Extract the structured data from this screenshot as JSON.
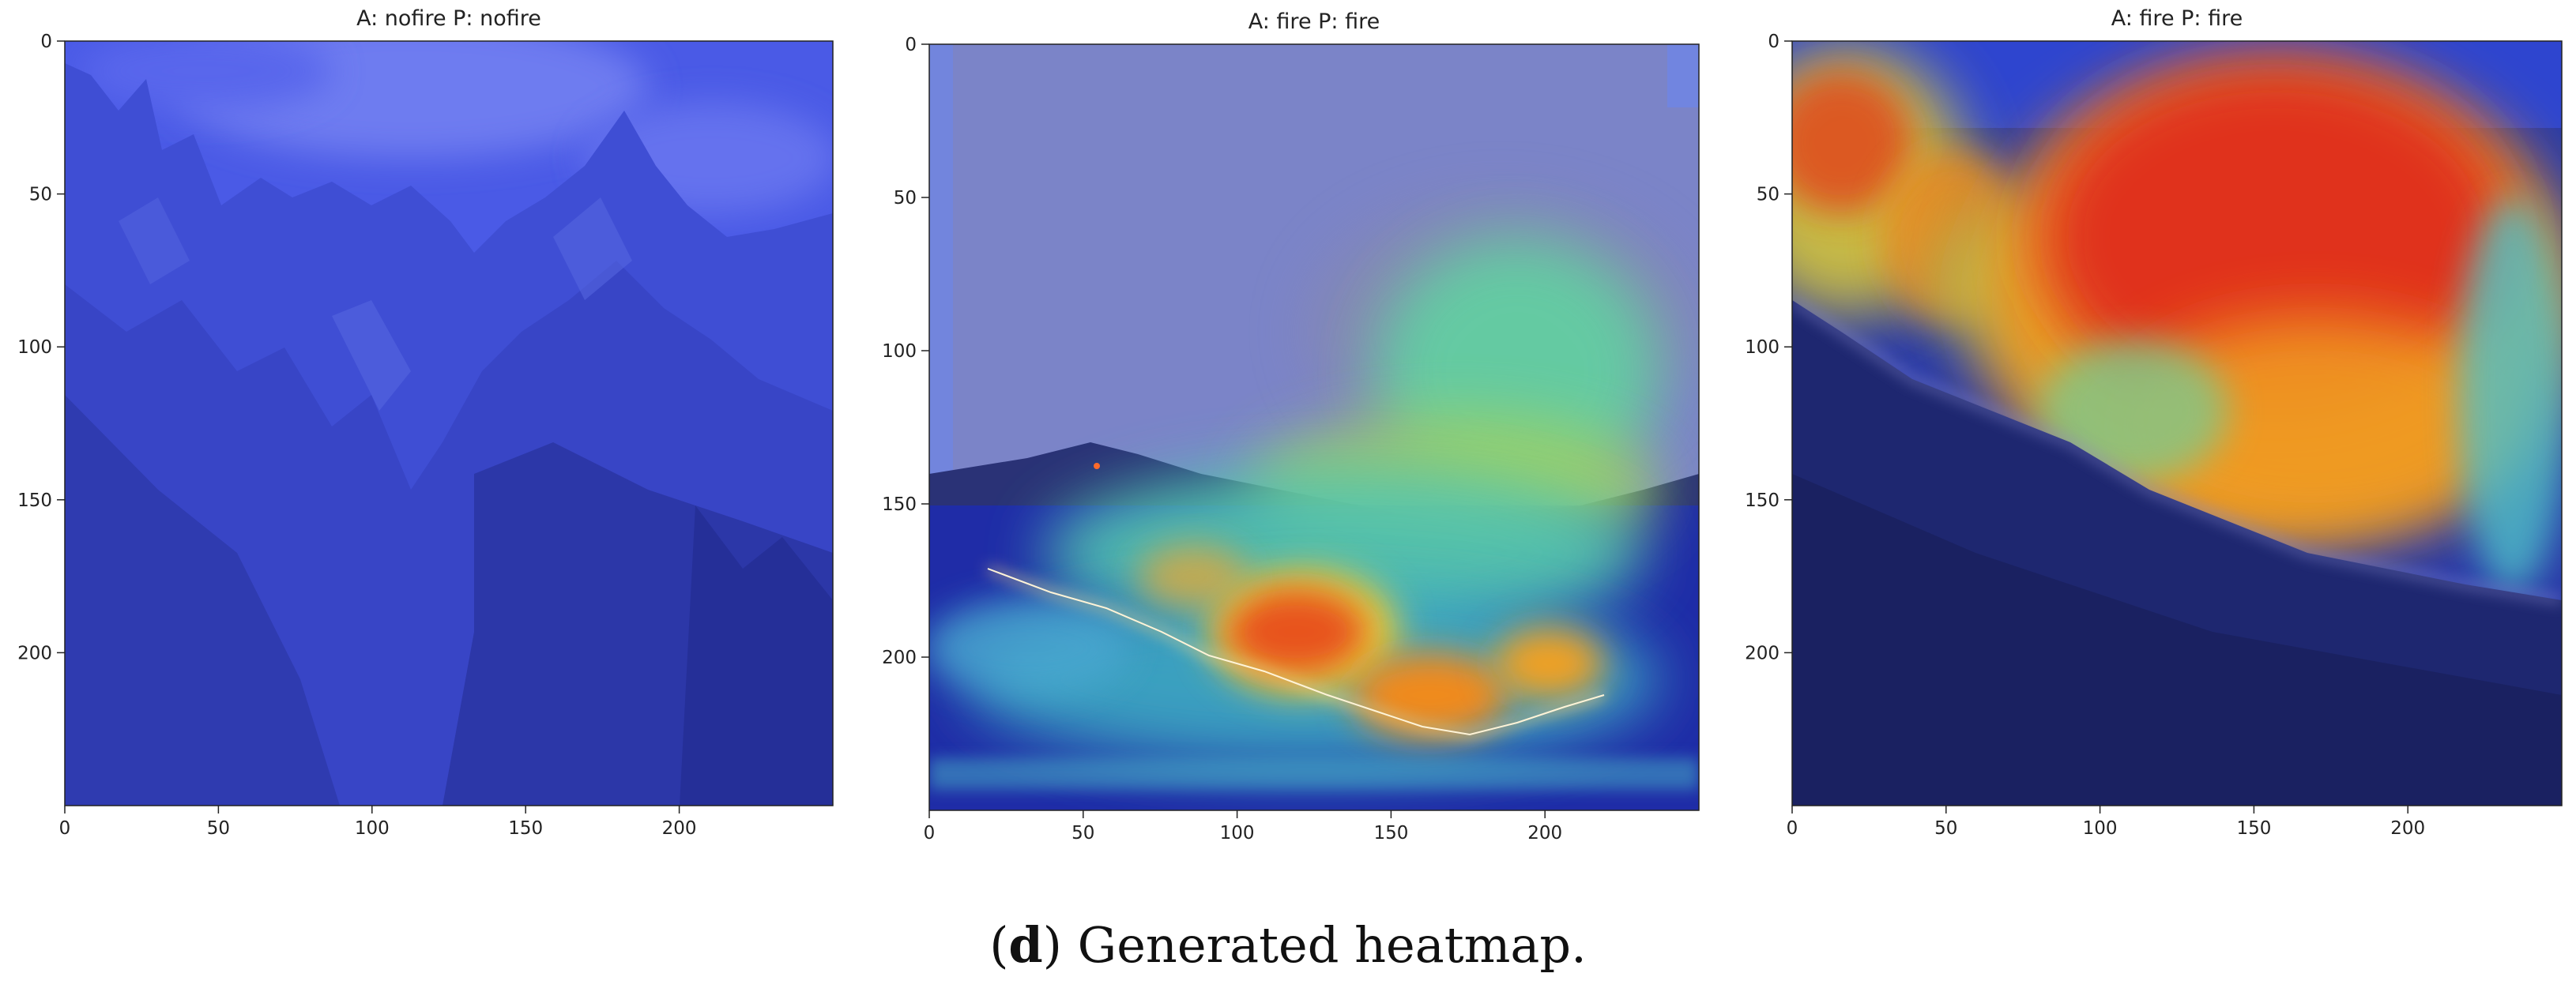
{
  "caption": {
    "letter": "d",
    "open": "(",
    "close": ")",
    "text": " Generated heatmap."
  },
  "colors": {
    "tint_blue": "#2f3fe6",
    "deep_blue": "#1a248a",
    "hot_red": "#e0200e",
    "warm_orange": "#f08a1c",
    "yellow": "#e6d23a",
    "cyan_green": "#5fd0a0"
  },
  "chart_data": [
    {
      "type": "heatmap",
      "title": "A: nofire P: nofire",
      "actual": "nofire",
      "predicted": "nofire",
      "xlabel": "",
      "ylabel": "",
      "xlim": [
        0,
        250
      ],
      "ylim": [
        250,
        0
      ],
      "xticks": [
        0,
        50,
        100,
        150,
        200
      ],
      "yticks": [
        0,
        50,
        100,
        150,
        200
      ],
      "scene": "mountains, uniform blue tint (no activation)"
    },
    {
      "type": "heatmap",
      "title": "A: fire P: fire",
      "actual": "fire",
      "predicted": "fire",
      "xlabel": "",
      "ylabel": "",
      "xlim": [
        0,
        250
      ],
      "ylim": [
        250,
        0
      ],
      "xticks": [
        0,
        50,
        100,
        150,
        200
      ],
      "yticks": [
        0,
        50,
        100,
        150,
        200
      ],
      "scene": "fire line along hillside with smoke plume; hot spots near (105,195), (150,215), (200,205)"
    },
    {
      "type": "heatmap",
      "title": "A: fire P: fire",
      "actual": "fire",
      "predicted": "fire",
      "xlabel": "",
      "ylabel": "",
      "xlim": [
        0,
        250
      ],
      "ylim": [
        250,
        0
      ],
      "xticks": [
        0,
        50,
        100,
        150,
        200
      ],
      "yticks": [
        0,
        50,
        100,
        150,
        200
      ],
      "scene": "smoke-filled sky above dark slope; strong activation over upper-right region"
    }
  ]
}
